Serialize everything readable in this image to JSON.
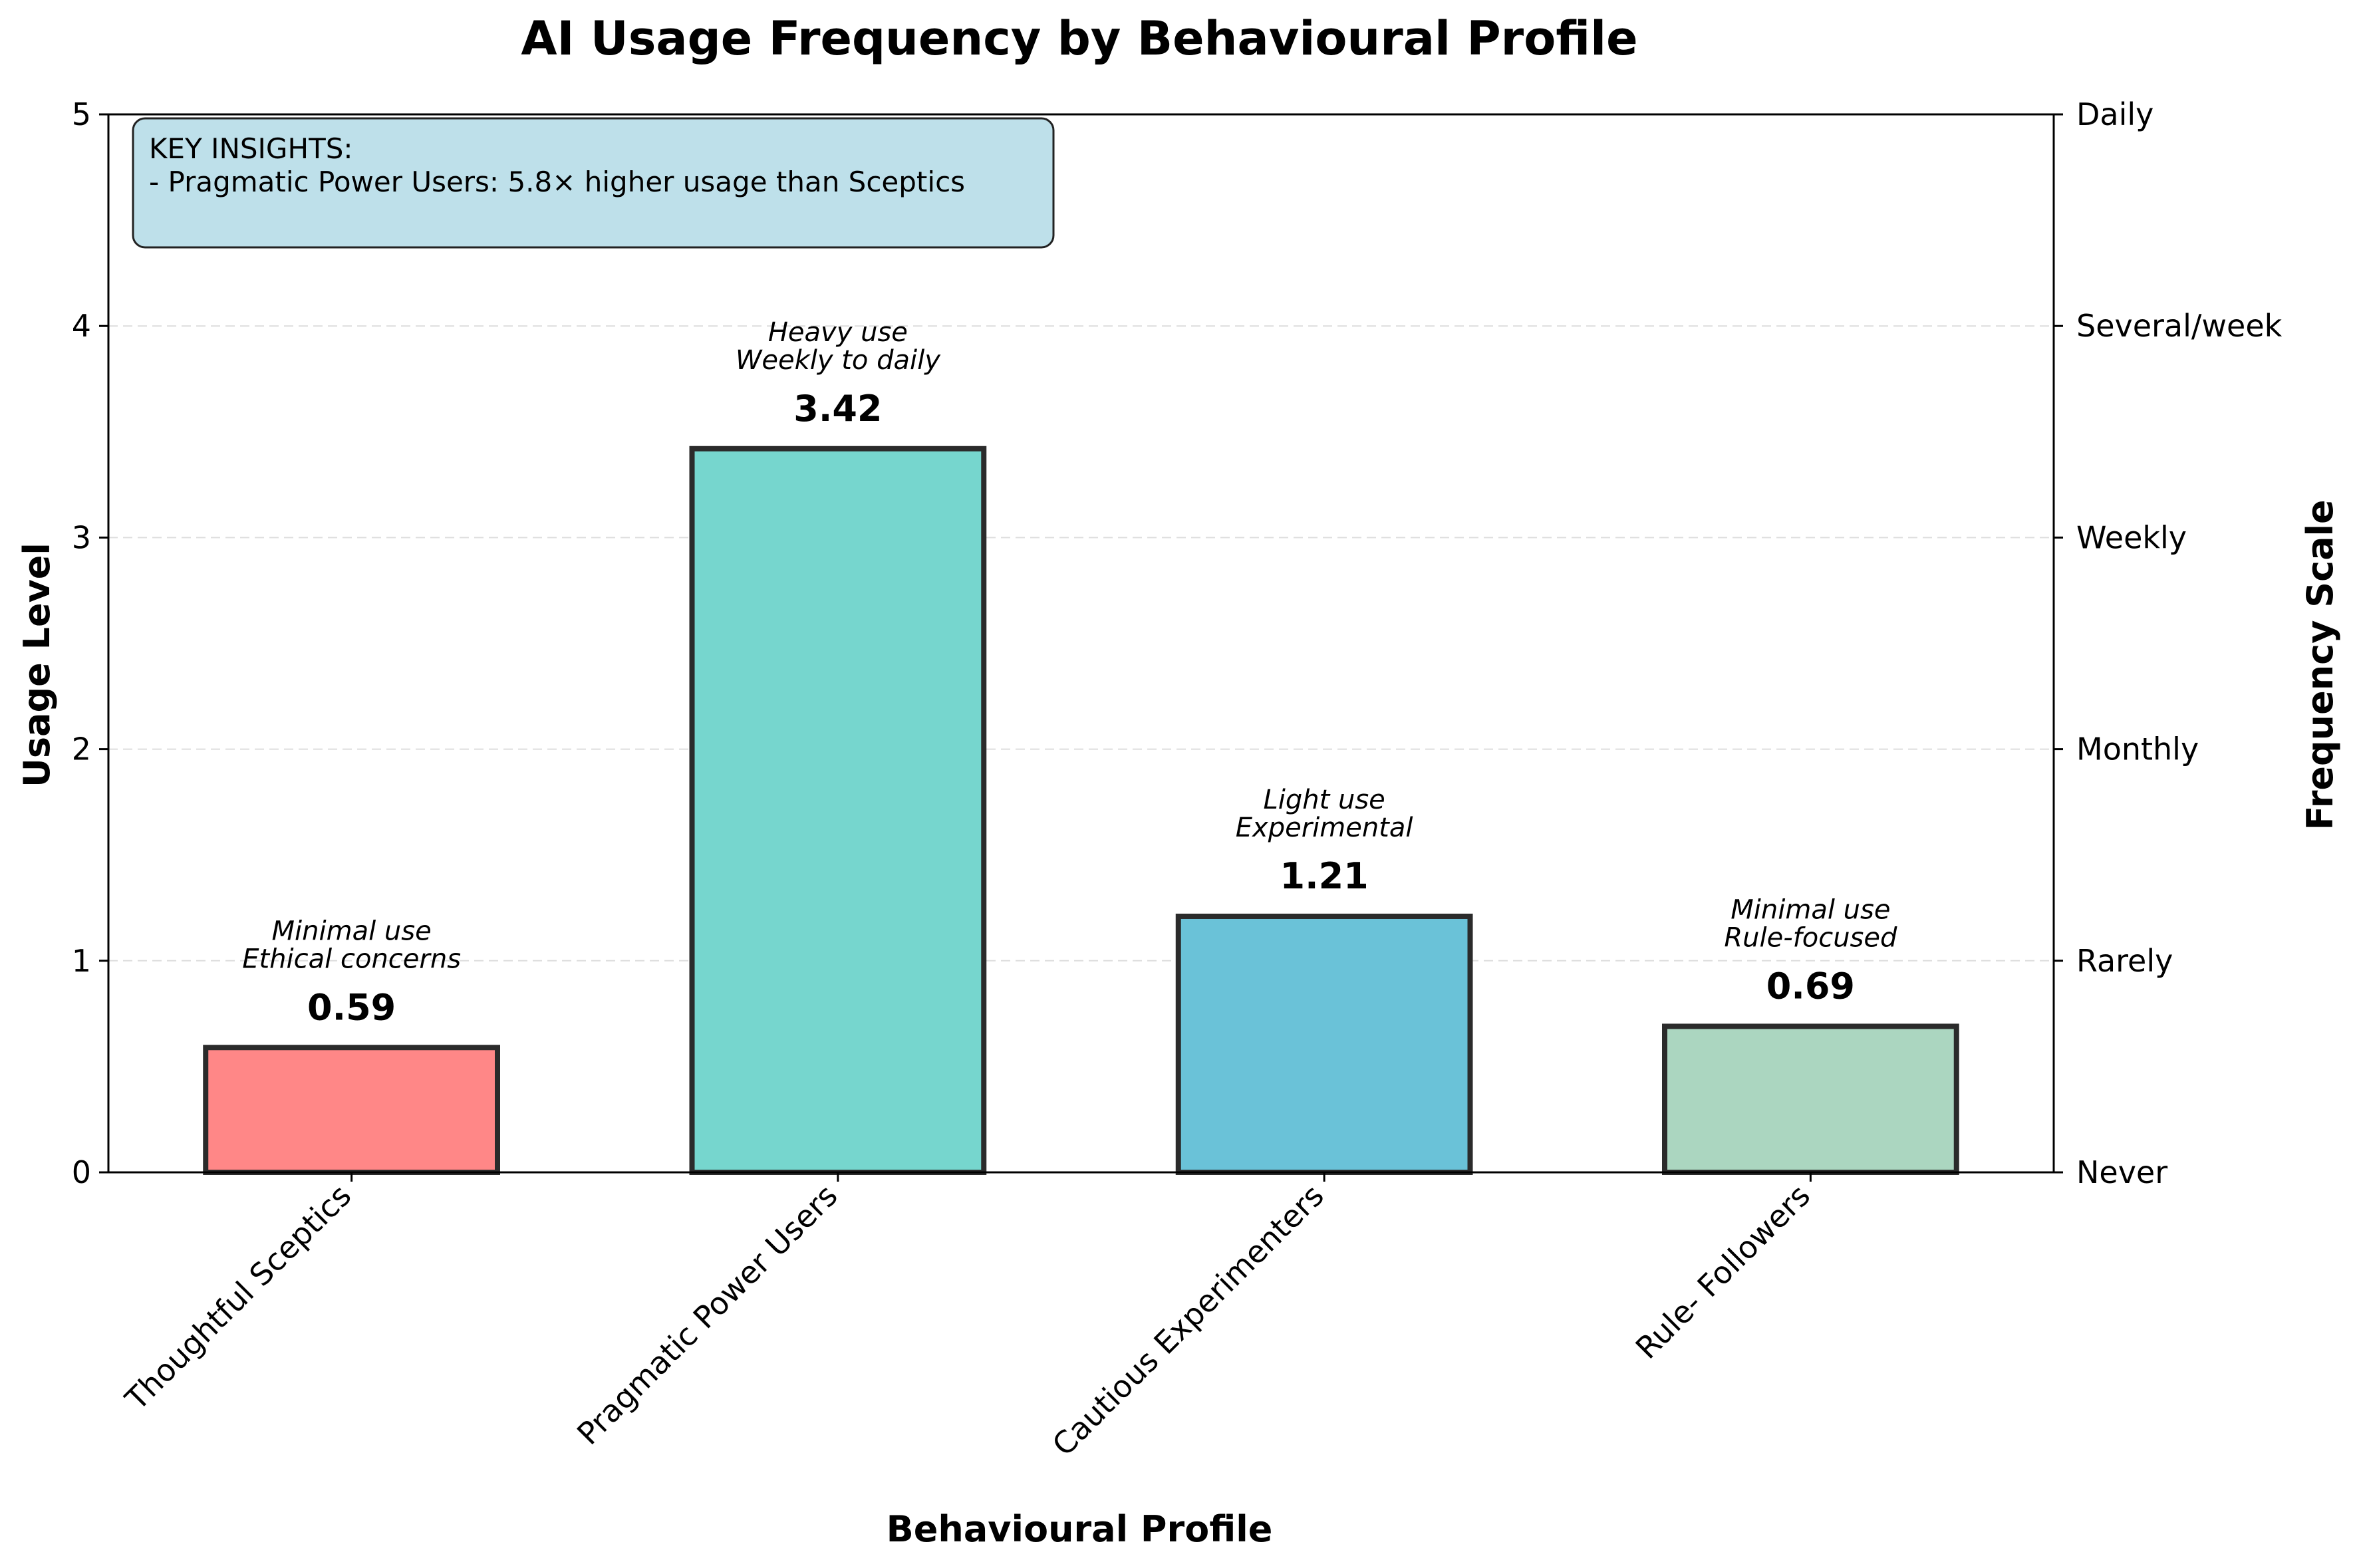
{
  "chart_data": {
    "type": "bar",
    "title": "AI Usage Frequency by Behavioural Profile",
    "xlabel": "Behavioural Profile",
    "ylabel": "Usage Level",
    "y2label": "Frequency Scale",
    "ylim": [
      0,
      5
    ],
    "yticks": [
      "0",
      "1",
      "2",
      "3",
      "4",
      "5"
    ],
    "y2ticks": [
      "Never",
      "Rarely",
      "Monthly",
      "Weekly",
      "Several/week",
      "Daily"
    ],
    "grid": "horizontal dashed",
    "categories": [
      "Thoughtful Sceptics",
      "Pragmatic Power Users",
      "Cautious Experimenters",
      "Rule- Followers"
    ],
    "values": [
      0.59,
      3.42,
      1.21,
      0.69
    ],
    "value_labels": [
      "0.59",
      "3.42",
      "1.21",
      "0.69"
    ],
    "annotations": [
      [
        "Minimal use",
        "Ethical concerns"
      ],
      [
        "Heavy use",
        "Weekly to daily"
      ],
      [
        "Light use",
        "Experimental"
      ],
      [
        "Minimal use",
        "Rule-focused"
      ]
    ],
    "colors": [
      "#FF8787",
      "#76D6CE",
      "#6AC2D8",
      "#ABD6C0"
    ],
    "insight_box": {
      "title": "KEY INSIGHTS:",
      "lines": [
        "- Pragmatic Power Users: 5.8× higher usage than Sceptics"
      ],
      "color": "#BEE0EA"
    }
  }
}
